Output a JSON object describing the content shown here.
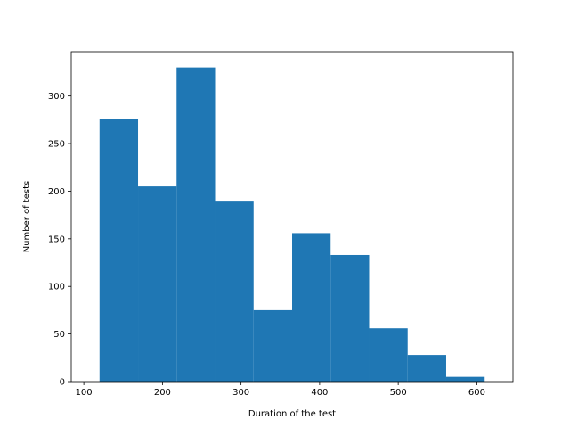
{
  "chart_data": {
    "type": "bar",
    "title": "",
    "xlabel": "Duration of the test",
    "ylabel": "Number of tests",
    "bin_edges": [
      120,
      169,
      218,
      267,
      316,
      365,
      414,
      463,
      512,
      561,
      610
    ],
    "values": [
      276,
      205,
      330,
      190,
      75,
      156,
      133,
      56,
      28,
      5
    ],
    "xlim": [
      84,
      646
    ],
    "ylim": [
      0,
      346.5
    ],
    "xticks": [
      100,
      200,
      300,
      400,
      500,
      600
    ],
    "yticks": [
      0,
      50,
      100,
      150,
      200,
      250,
      300
    ],
    "bar_color": "#1f77b4",
    "grid": false,
    "legend": "none"
  }
}
